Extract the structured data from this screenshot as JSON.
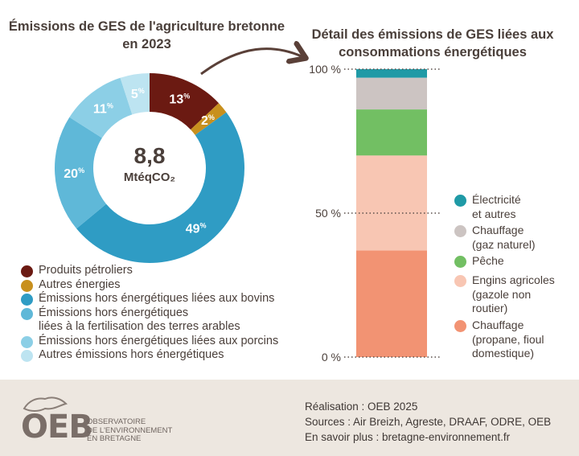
{
  "left_title": "Émissions de GES de l'agriculture bretonne en 2023",
  "right_title": "Détail des émissions de GES liées aux consommations énergétiques",
  "donut_center": {
    "value": "8,8",
    "unit": "MtéqCO₂"
  },
  "chart_data": [
    {
      "type": "pie",
      "title": "Émissions de GES de l'agriculture bretonne en 2023",
      "total_label": "8,8 MtéqCO₂",
      "slices": [
        {
          "name": "Produits pétroliers",
          "value": 13,
          "label": "13",
          "color": "#6b1a12"
        },
        {
          "name": "Autres énergies",
          "value": 2,
          "label": "2",
          "color": "#c8901e"
        },
        {
          "name": "Émissions hors énergétiques liées aux bovins",
          "value": 49,
          "label": "49",
          "color": "#2f9cc4"
        },
        {
          "name": "Émissions hors énergétiques liées à la fertilisation des terres arables",
          "value": 20,
          "label": "20",
          "color": "#5fb8d8"
        },
        {
          "name": "Émissions hors énergétiques liées aux porcins",
          "value": 11,
          "label": "11",
          "color": "#8ccfe6"
        },
        {
          "name": "Autres émissions hors énergétiques",
          "value": 5,
          "label": "5",
          "color": "#bde4f1"
        }
      ],
      "percent_sign": "%"
    },
    {
      "type": "bar",
      "stacked": true,
      "title": "Détail des émissions de GES liées aux consommations énergétiques",
      "ylim": [
        0,
        100
      ],
      "yticks": [
        "0 %",
        "50 %",
        "100 %"
      ],
      "segments": [
        {
          "name": "Chauffage (propane, fioul domestique)",
          "value": 37,
          "color": "#f29373"
        },
        {
          "name": "Engins agricoles (gazole non routier)",
          "value": 33,
          "color": "#f8c6b3"
        },
        {
          "name": "Pêche",
          "value": 16,
          "color": "#72bf63"
        },
        {
          "name": "Chauffage (gaz naturel)",
          "value": 11,
          "color": "#ccc4c2"
        },
        {
          "name": "Électricité et autres",
          "value": 3,
          "color": "#1f9aa6"
        }
      ]
    }
  ],
  "left_legend": [
    {
      "label": "Produits pétroliers",
      "color": "#6b1a12"
    },
    {
      "label": "Autres énergies",
      "color": "#c8901e"
    },
    {
      "label": "Émissions hors énergétiques liées aux bovins",
      "color": "#2f9cc4"
    },
    {
      "label": "Émissions hors énergétiques",
      "label2": "liées à la fertilisation des terres arables",
      "color": "#5fb8d8"
    },
    {
      "label": "Émissions hors énergétiques liées aux porcins",
      "color": "#8ccfe6"
    },
    {
      "label": "Autres émissions hors énergétiques",
      "color": "#bde4f1"
    }
  ],
  "right_legend": [
    {
      "line1": "Électricité",
      "line2": "et autres",
      "line3": "",
      "color": "#1f9aa6"
    },
    {
      "line1": "Chauffage",
      "line2": "(gaz naturel)",
      "line3": "",
      "color": "#ccc4c2"
    },
    {
      "line1": "Pêche",
      "line2": "",
      "line3": "",
      "color": "#72bf63"
    },
    {
      "line1": "Engins agricoles",
      "line2": "(gazole non",
      "line3": "routier)",
      "color": "#f8c6b3"
    },
    {
      "line1": "Chauffage",
      "line2": "(propane, fioul",
      "line3": "domestique)",
      "color": "#f29373"
    }
  ],
  "footer": {
    "line1": "Réalisation : OEB 2025",
    "line2": "Sources : Air Breizh, Agreste, DRAAF, ODRE, OEB",
    "line3": "En savoir plus : bretagne-environnement.fr"
  },
  "logo": {
    "text": "OEB",
    "sub1": "OBSERVATOIRE",
    "sub2": "DE L'ENVIRONNEMENT",
    "sub3": "EN BRETAGNE"
  }
}
